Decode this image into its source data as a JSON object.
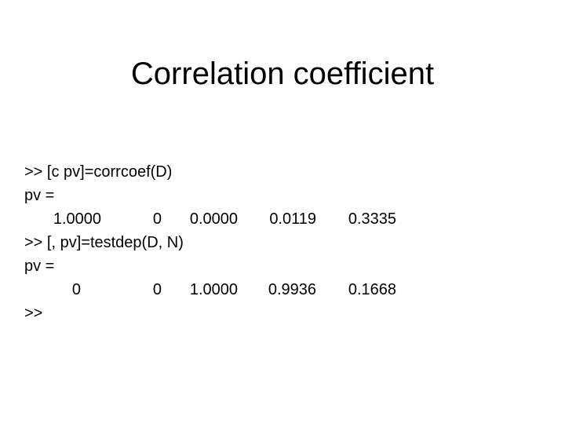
{
  "slide": {
    "title": "Correlation coefficient",
    "lines": [
      ">> [c pv]=corrcoef(D)",
      "pv =",
      ">> [, pv]=testdep(D, N)",
      "pv =",
      ">>"
    ],
    "row1": [
      "1.0000",
      "0",
      "0.0000",
      "0.0119",
      "0.3335"
    ],
    "row2": [
      "0",
      "0",
      "1.0000",
      "0.9936",
      "0.1668"
    ]
  }
}
